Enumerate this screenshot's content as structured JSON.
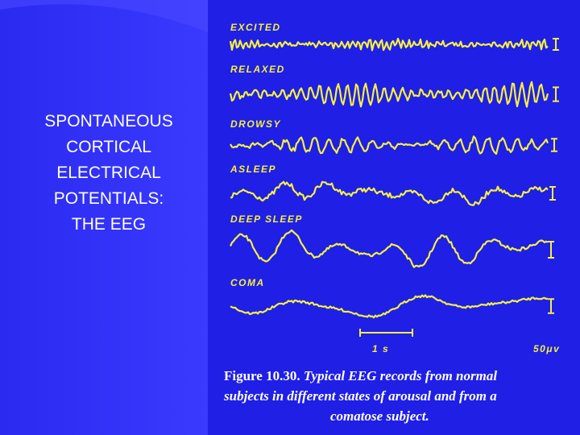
{
  "slide": {
    "title": [
      "SPONTANEOUS",
      "CORTICAL",
      "ELECTRICAL",
      "POTENTIALS:",
      "THE EEG"
    ],
    "figure": {
      "traces": [
        {
          "label": "EXCITED"
        },
        {
          "label": "RELAXED"
        },
        {
          "label": "DROWSY"
        },
        {
          "label": "ASLEEP"
        },
        {
          "label": "DEEP SLEEP"
        },
        {
          "label": "COMA"
        }
      ],
      "time_scale": "1 s",
      "voltage_scale": "50μv",
      "caption": {
        "number": "Figure 10.30.",
        "lines": [
          "Typical EEG records from normal",
          "subjects in different states of arousal and from a",
          "comatose subject."
        ]
      }
    }
  }
}
